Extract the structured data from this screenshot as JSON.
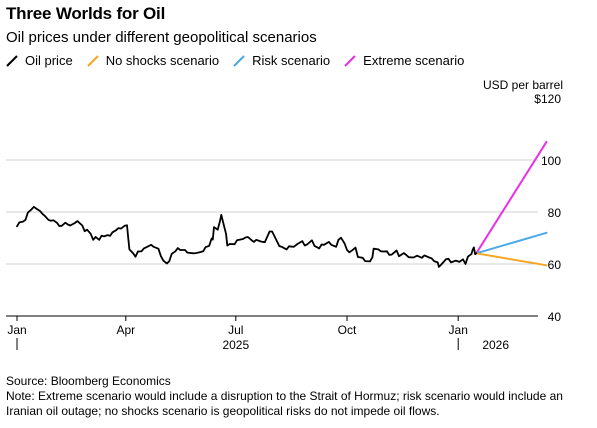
{
  "title": "Three Worlds for Oil",
  "subtitle": "Oil prices under different geopolitical scenarios",
  "legend": [
    {
      "label": "Oil price",
      "color": "#000000"
    },
    {
      "label": "No shocks scenario",
      "color": "#f5a623"
    },
    {
      "label": "Risk scenario",
      "color": "#4aa9e9"
    },
    {
      "label": "Extreme scenario",
      "color": "#e830e8"
    }
  ],
  "unit": "USD per barrel",
  "footer": {
    "source": "Source: Bloomberg Economics",
    "note": "Note: Extreme scenario would include a disruption to the Strait of Hormuz; risk scenario would include an Iranian oil outage; no shocks scenario is geopolitical risks do not impede oil flows."
  },
  "chart_data": {
    "type": "line",
    "title": "Three Worlds for Oil",
    "subtitle": "Oil prices under different geopolitical scenarios",
    "ylabel": "USD per barrel",
    "ylim": [
      40,
      120
    ],
    "y_ticks": [
      {
        "value": 120,
        "label": "$120"
      },
      {
        "value": 100,
        "label": "100"
      },
      {
        "value": 80,
        "label": "80"
      },
      {
        "value": 60,
        "label": "60"
      },
      {
        "value": 40,
        "label": "40"
      }
    ],
    "xlim": [
      "2025-01-01",
      "2026-04-01"
    ],
    "x_ticks": [
      {
        "date": "2025-01-01",
        "label": "Jan"
      },
      {
        "date": "2025-04-01",
        "label": "Apr"
      },
      {
        "date": "2025-07-01",
        "label": "Jul"
      },
      {
        "date": "2025-10-01",
        "label": "Oct"
      },
      {
        "date": "2026-01-01",
        "label": "Jan"
      }
    ],
    "year_labels": [
      {
        "date": "2025-07-01",
        "label": "2025"
      },
      {
        "date": "2026-02-01",
        "label": "2026"
      }
    ],
    "grid": true,
    "legend_position": "top",
    "series": [
      {
        "name": "Oil price",
        "color": "#000000",
        "points": [
          [
            "2025-01-01",
            74.5
          ],
          [
            "2025-01-03",
            76.0
          ],
          [
            "2025-01-06",
            76.3
          ],
          [
            "2025-01-08",
            77.0
          ],
          [
            "2025-01-10",
            79.8
          ],
          [
            "2025-01-13",
            81.0
          ],
          [
            "2025-01-15",
            82.0
          ],
          [
            "2025-01-17",
            81.3
          ],
          [
            "2025-01-20",
            80.4
          ],
          [
            "2025-01-22",
            79.3
          ],
          [
            "2025-01-24",
            78.5
          ],
          [
            "2025-01-27",
            77.0
          ],
          [
            "2025-01-29",
            76.6
          ],
          [
            "2025-01-31",
            76.8
          ],
          [
            "2025-02-03",
            75.9
          ],
          [
            "2025-02-05",
            74.6
          ],
          [
            "2025-02-07",
            74.7
          ],
          [
            "2025-02-10",
            75.9
          ],
          [
            "2025-02-12",
            75.2
          ],
          [
            "2025-02-14",
            74.8
          ],
          [
            "2025-02-18",
            75.8
          ],
          [
            "2025-02-20",
            76.5
          ],
          [
            "2025-02-24",
            74.8
          ],
          [
            "2025-02-26",
            72.6
          ],
          [
            "2025-02-28",
            73.2
          ],
          [
            "2025-03-03",
            71.6
          ],
          [
            "2025-03-05",
            69.3
          ],
          [
            "2025-03-07",
            70.4
          ],
          [
            "2025-03-10",
            69.3
          ],
          [
            "2025-03-12",
            70.9
          ],
          [
            "2025-03-14",
            70.6
          ],
          [
            "2025-03-17",
            71.1
          ],
          [
            "2025-03-19",
            70.8
          ],
          [
            "2025-03-21",
            72.2
          ],
          [
            "2025-03-24",
            73.0
          ],
          [
            "2025-03-26",
            73.8
          ],
          [
            "2025-03-28",
            73.6
          ],
          [
            "2025-03-31",
            74.7
          ],
          [
            "2025-04-02",
            74.9
          ],
          [
            "2025-04-03",
            70.1
          ],
          [
            "2025-04-04",
            65.6
          ],
          [
            "2025-04-07",
            64.2
          ],
          [
            "2025-04-09",
            62.8
          ],
          [
            "2025-04-11",
            64.8
          ],
          [
            "2025-04-14",
            64.9
          ],
          [
            "2025-04-16",
            66.0
          ],
          [
            "2025-04-22",
            67.4
          ],
          [
            "2025-04-24",
            66.6
          ],
          [
            "2025-04-28",
            65.9
          ],
          [
            "2025-04-30",
            63.1
          ],
          [
            "2025-05-02",
            61.3
          ],
          [
            "2025-05-05",
            60.2
          ],
          [
            "2025-05-07",
            61.1
          ],
          [
            "2025-05-09",
            63.9
          ],
          [
            "2025-05-12",
            64.9
          ],
          [
            "2025-05-14",
            66.1
          ],
          [
            "2025-05-16",
            65.4
          ],
          [
            "2025-05-20",
            65.4
          ],
          [
            "2025-05-22",
            64.4
          ],
          [
            "2025-05-27",
            64.1
          ],
          [
            "2025-05-29",
            64.2
          ],
          [
            "2025-06-02",
            64.6
          ],
          [
            "2025-06-04",
            64.9
          ],
          [
            "2025-06-06",
            66.5
          ],
          [
            "2025-06-09",
            67.0
          ],
          [
            "2025-06-11",
            69.8
          ],
          [
            "2025-06-12",
            69.4
          ],
          [
            "2025-06-13",
            74.2
          ],
          [
            "2025-06-16",
            73.2
          ],
          [
            "2025-06-18",
            76.7
          ],
          [
            "2025-06-19",
            78.9
          ],
          [
            "2025-06-20",
            77.0
          ],
          [
            "2025-06-23",
            71.5
          ],
          [
            "2025-06-24",
            67.1
          ],
          [
            "2025-06-26",
            67.7
          ],
          [
            "2025-06-30",
            67.6
          ],
          [
            "2025-07-02",
            69.1
          ],
          [
            "2025-07-07",
            69.6
          ],
          [
            "2025-07-09",
            70.2
          ],
          [
            "2025-07-11",
            70.4
          ],
          [
            "2025-07-14",
            69.2
          ],
          [
            "2025-07-16",
            68.5
          ],
          [
            "2025-07-18",
            69.3
          ],
          [
            "2025-07-22",
            68.6
          ],
          [
            "2025-07-25",
            68.4
          ],
          [
            "2025-07-29",
            72.5
          ],
          [
            "2025-07-31",
            72.5
          ],
          [
            "2025-08-04",
            68.8
          ],
          [
            "2025-08-06",
            66.9
          ],
          [
            "2025-08-08",
            66.6
          ],
          [
            "2025-08-12",
            65.6
          ],
          [
            "2025-08-14",
            66.8
          ],
          [
            "2025-08-18",
            66.6
          ],
          [
            "2025-08-21",
            67.7
          ],
          [
            "2025-08-25",
            68.8
          ],
          [
            "2025-08-27",
            67.1
          ],
          [
            "2025-08-29",
            67.5
          ],
          [
            "2025-09-02",
            69.1
          ],
          [
            "2025-09-04",
            67.0
          ],
          [
            "2025-09-08",
            66.0
          ],
          [
            "2025-09-10",
            67.5
          ],
          [
            "2025-09-12",
            67.4
          ],
          [
            "2025-09-16",
            68.5
          ],
          [
            "2025-09-18",
            67.4
          ],
          [
            "2025-09-22",
            66.6
          ],
          [
            "2025-09-24",
            69.3
          ],
          [
            "2025-09-26",
            70.1
          ],
          [
            "2025-09-29",
            67.9
          ],
          [
            "2025-10-01",
            65.4
          ],
          [
            "2025-10-03",
            64.5
          ],
          [
            "2025-10-06",
            65.5
          ],
          [
            "2025-10-08",
            66.3
          ],
          [
            "2025-10-10",
            62.7
          ],
          [
            "2025-10-14",
            62.4
          ],
          [
            "2025-10-16",
            61.1
          ],
          [
            "2025-10-20",
            61.0
          ],
          [
            "2025-10-22",
            62.6
          ],
          [
            "2025-10-23",
            65.9
          ],
          [
            "2025-10-27",
            65.6
          ],
          [
            "2025-10-29",
            64.9
          ],
          [
            "2025-10-31",
            64.8
          ],
          [
            "2025-11-03",
            64.9
          ],
          [
            "2025-11-05",
            63.5
          ],
          [
            "2025-11-07",
            63.6
          ],
          [
            "2025-11-11",
            65.2
          ],
          [
            "2025-11-13",
            63.0
          ],
          [
            "2025-11-17",
            64.2
          ],
          [
            "2025-11-19",
            63.5
          ],
          [
            "2025-11-21",
            62.6
          ],
          [
            "2025-11-25",
            62.5
          ],
          [
            "2025-11-28",
            63.2
          ],
          [
            "2025-12-02",
            62.4
          ],
          [
            "2025-12-04",
            63.3
          ],
          [
            "2025-12-08",
            62.5
          ],
          [
            "2025-12-10",
            62.2
          ],
          [
            "2025-12-12",
            61.1
          ],
          [
            "2025-12-15",
            60.6
          ],
          [
            "2025-12-16",
            58.9
          ],
          [
            "2025-12-18",
            59.8
          ],
          [
            "2025-12-22",
            61.9
          ],
          [
            "2025-12-24",
            62.0
          ],
          [
            "2025-12-26",
            60.6
          ],
          [
            "2025-12-30",
            61.3
          ],
          [
            "2026-01-02",
            60.8
          ],
          [
            "2026-01-05",
            61.8
          ],
          [
            "2026-01-07",
            60.0
          ],
          [
            "2026-01-09",
            62.8
          ],
          [
            "2026-01-12",
            63.9
          ],
          [
            "2026-01-13",
            65.5
          ],
          [
            "2026-01-14",
            66.4
          ],
          [
            "2026-01-15",
            63.8
          ],
          [
            "2026-01-16",
            64.1
          ]
        ]
      },
      {
        "name": "No shocks scenario",
        "color": "#f5a623",
        "points": [
          [
            "2026-01-16",
            64.1
          ],
          [
            "2026-03-15",
            59.5
          ]
        ]
      },
      {
        "name": "Risk scenario",
        "color": "#4aa9e9",
        "points": [
          [
            "2026-01-16",
            64.1
          ],
          [
            "2026-03-15",
            72.0
          ]
        ]
      },
      {
        "name": "Extreme scenario",
        "color": "#e830e8",
        "points": [
          [
            "2026-01-16",
            64.1
          ],
          [
            "2026-03-15",
            107.0
          ]
        ]
      }
    ]
  }
}
